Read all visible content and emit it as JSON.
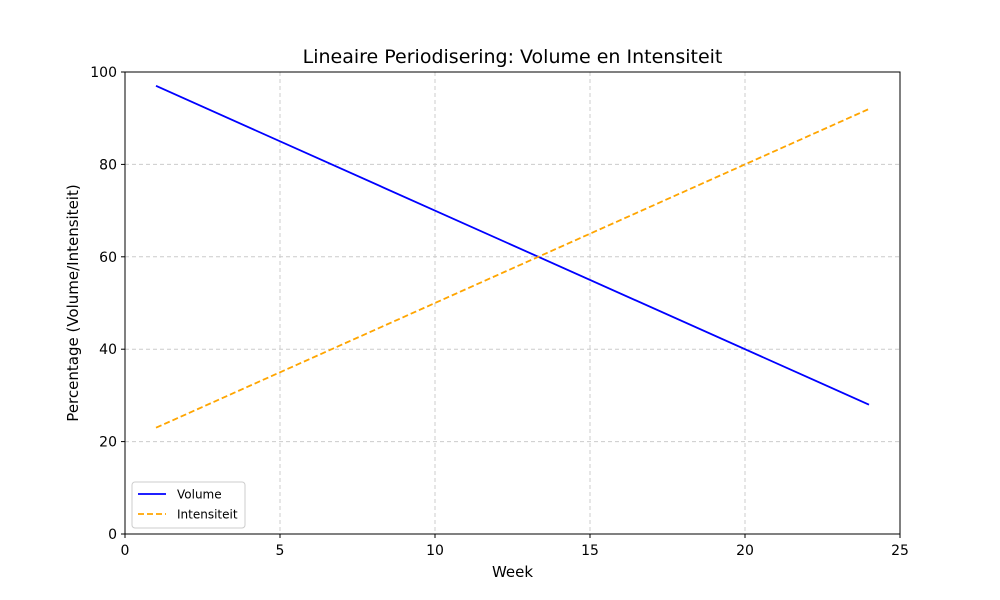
{
  "chart_data": {
    "type": "line",
    "title": "Lineaire Periodisering: Volume en Intensiteit",
    "xlabel": "Week",
    "ylabel": "Percentage (Volume/Intensiteit)",
    "xlim": [
      0,
      25
    ],
    "ylim": [
      0,
      100
    ],
    "xticks": [
      0,
      5,
      10,
      15,
      20,
      25
    ],
    "yticks": [
      0,
      20,
      40,
      60,
      80,
      100
    ],
    "grid": true,
    "legend_position": "lower-left",
    "series": [
      {
        "name": "Volume",
        "color": "#0000ff",
        "style": "solid",
        "x": [
          1,
          24
        ],
        "y": [
          97,
          28
        ]
      },
      {
        "name": "Intensiteit",
        "color": "#ffa500",
        "style": "dashed",
        "x": [
          1,
          24
        ],
        "y": [
          23,
          92
        ]
      }
    ]
  }
}
